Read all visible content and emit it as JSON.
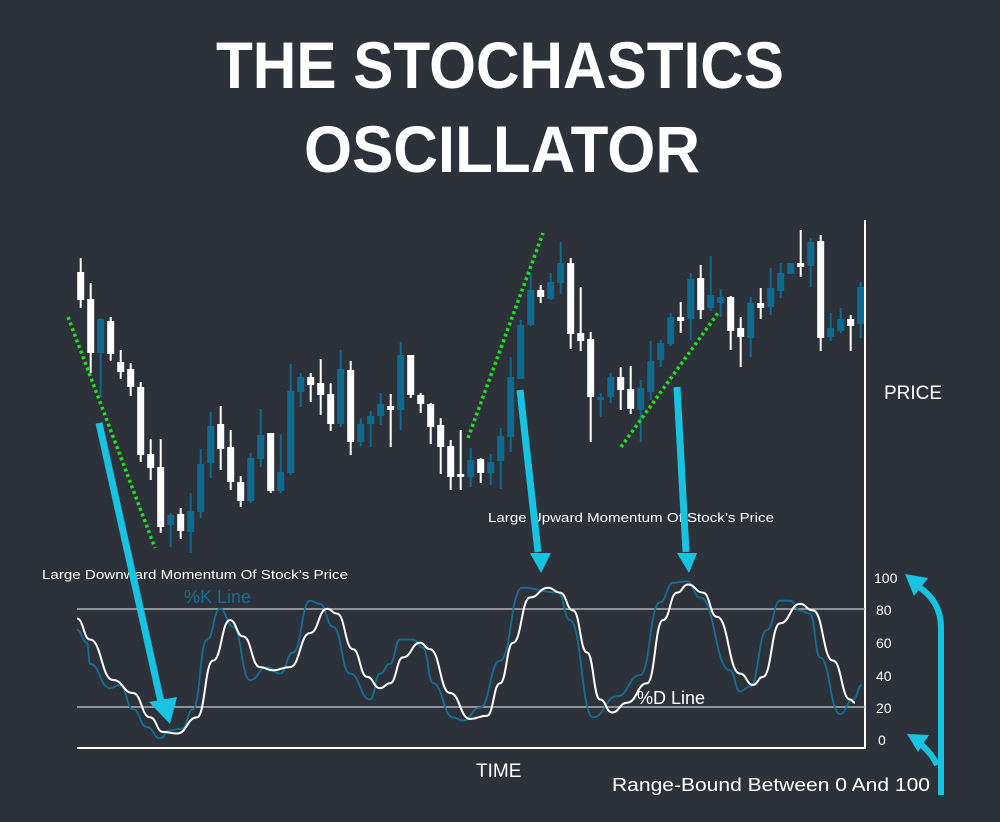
{
  "title_line1": "THE STOCHASTICS",
  "title_line2": "OSCILLATOR",
  "colors": {
    "background": "#2d323a",
    "up_candle": "#0e6a8e",
    "down_candle": "#ffffff",
    "k_line": "#136f93",
    "d_line": "#ffffff",
    "trendline": "#22dd22",
    "arrow": "#18c3e2",
    "gridline": "#aeb2b8"
  },
  "chart_data": [
    {
      "type": "candlestick",
      "ylabel": "PRICE",
      "note": "",
      "candle_fields": [
        "open",
        "high",
        "low",
        "close"
      ],
      "candles": [
        [
          328,
          342,
          292,
          300
        ],
        [
          301,
          317,
          227,
          247
        ],
        [
          247,
          282,
          203,
          281
        ],
        [
          279,
          283,
          239,
          246
        ],
        [
          238,
          250,
          221,
          228
        ],
        [
          231,
          237,
          204,
          213
        ],
        [
          213,
          218,
          138,
          145
        ],
        [
          146,
          161,
          120,
          132
        ],
        [
          133,
          161,
          67,
          73
        ],
        [
          75,
          87,
          53,
          85
        ],
        [
          86,
          92,
          61,
          69
        ],
        [
          68,
          107,
          47,
          89
        ],
        [
          88,
          151,
          82,
          136
        ],
        [
          137,
          188,
          122,
          174
        ],
        [
          176,
          194,
          130,
          151
        ],
        [
          153,
          170,
          110,
          118
        ],
        [
          118,
          124,
          93,
          99
        ],
        [
          99,
          147,
          97,
          142
        ],
        [
          141,
          191,
          133,
          165
        ],
        [
          167,
          167,
          107,
          109
        ],
        [
          109,
          166,
          107,
          128
        ],
        [
          127,
          236,
          125,
          209
        ],
        [
          208,
          227,
          193,
          223
        ],
        [
          223,
          227,
          198,
          215
        ],
        [
          217,
          241,
          185,
          205
        ],
        [
          206,
          217,
          169,
          176
        ],
        [
          176,
          250,
          173,
          231
        ],
        [
          230,
          239,
          145,
          158
        ],
        [
          158,
          182,
          154,
          176
        ],
        [
          176,
          189,
          153,
          184
        ],
        [
          184,
          207,
          175,
          196
        ],
        [
          194,
          206,
          153,
          190
        ],
        [
          190,
          258,
          170,
          245
        ],
        [
          245,
          245,
          202,
          205
        ],
        [
          205,
          207,
          187,
          196
        ],
        [
          196,
          197,
          156,
          173
        ],
        [
          175,
          182,
          126,
          153
        ],
        [
          154,
          160,
          110,
          123
        ],
        [
          126,
          170,
          110,
          123
        ],
        [
          123,
          152,
          113,
          140
        ],
        [
          141,
          142,
          117,
          127
        ],
        [
          127,
          146,
          115,
          138
        ],
        [
          139,
          172,
          111,
          164
        ],
        [
          163,
          243,
          148,
          223
        ],
        [
          221,
          280,
          221,
          275
        ],
        [
          275,
          327,
          274,
          310
        ],
        [
          310,
          315,
          297,
          303
        ],
        [
          301,
          327,
          300,
          318
        ],
        [
          317,
          358,
          306,
          337
        ],
        [
          337,
          342,
          251,
          266
        ],
        [
          267,
          313,
          249,
          259
        ],
        [
          261,
          268,
          158,
          203
        ],
        [
          200,
          207,
          183,
          203
        ],
        [
          203,
          227,
          197,
          223
        ],
        [
          223,
          233,
          190,
          210
        ],
        [
          211,
          234,
          186,
          191
        ],
        [
          190,
          220,
          158,
          212
        ],
        [
          208,
          259,
          200,
          239
        ],
        [
          240,
          260,
          233,
          257
        ],
        [
          256,
          287,
          254,
          283
        ],
        [
          283,
          298,
          267,
          279
        ],
        [
          281,
          327,
          260,
          321
        ],
        [
          322,
          335,
          281,
          290
        ],
        [
          292,
          344,
          289,
          305
        ],
        [
          297,
          311,
          283,
          303
        ],
        [
          303,
          304,
          250,
          269
        ],
        [
          272,
          283,
          233,
          263
        ],
        [
          262,
          303,
          243,
          297
        ],
        [
          297,
          312,
          281,
          292
        ],
        [
          293,
          332,
          285,
          312
        ],
        [
          309,
          337,
          302,
          327
        ],
        [
          326,
          337,
          326,
          337
        ],
        [
          337,
          370,
          323,
          333
        ],
        [
          334,
          362,
          313,
          358
        ],
        [
          359,
          365,
          249,
          262
        ],
        [
          263,
          287,
          259,
          272
        ],
        [
          269,
          292,
          267,
          281
        ],
        [
          281,
          285,
          249,
          274
        ],
        [
          276,
          318,
          262,
          313
        ]
      ],
      "trendlines": [
        {
          "direction": "down",
          "style": "dotted",
          "from_bar": -0.2,
          "to_bar": 8.5
        },
        {
          "direction": "up",
          "style": "dotted",
          "from_bar": 39.8,
          "to_bar": 47.3
        },
        {
          "direction": "up",
          "style": "dotted",
          "from_bar": 55.1,
          "to_bar": 64.8
        }
      ]
    },
    {
      "type": "line",
      "xlabel": "TIME",
      "ylim": [
        0,
        100
      ],
      "yticks": [
        "100",
        "80",
        "60",
        "40",
        "20",
        "0"
      ],
      "reference_lines": [
        80,
        20
      ],
      "series": [
        {
          "name": "%K Line",
          "x": [
            0.7,
            1.7,
            2,
            4,
            5,
            6.3,
            7.7,
            9,
            10,
            11.2,
            12.3,
            13.7,
            15,
            16.3,
            18,
            19.7,
            21,
            22.3,
            24,
            25,
            26.3,
            28,
            30,
            31,
            32,
            33,
            34.3,
            35.3,
            36.3,
            38.3,
            39.3,
            41,
            43,
            45.2,
            48.8,
            50,
            52.3,
            54.7,
            57,
            59,
            60.3,
            61.7,
            63,
            66,
            67,
            68,
            69.7,
            71,
            72,
            73,
            74,
            75,
            77,
            78.3,
            79.2
          ],
          "values": [
            68,
            60,
            47,
            32,
            34,
            19,
            8,
            1,
            6,
            7,
            19,
            62,
            81,
            70,
            37,
            45,
            41,
            54,
            86,
            84,
            70,
            41,
            25,
            41,
            47,
            62,
            62,
            57,
            35,
            14,
            12,
            20,
            49,
            94,
            91,
            74,
            14,
            27,
            40,
            85,
            97,
            98,
            88,
            43,
            30,
            33,
            68,
            86,
            86,
            80,
            78,
            51,
            16,
            25,
            34
          ]
        },
        {
          "name": "%D Line",
          "x": [
            0.7,
            2,
            4.3,
            6.3,
            8,
            9.3,
            10.7,
            12.7,
            14.3,
            16,
            17.3,
            19,
            20.3,
            22,
            24,
            25.7,
            26.7,
            28.3,
            29.7,
            31,
            32,
            33.3,
            35,
            36,
            38,
            40,
            41.7,
            43,
            44.3,
            46,
            47.8,
            49,
            50.3,
            51.7,
            53,
            54.2,
            55.7,
            57.7,
            59.3,
            60.7,
            61.8,
            63.3,
            64.7,
            67,
            68.3,
            69.3,
            71,
            73,
            74.3,
            76.3,
            78,
            78.5
          ],
          "values": [
            75,
            62,
            37,
            29,
            14,
            5,
            4,
            14,
            49,
            74,
            64,
            45,
            43,
            45,
            66,
            81,
            78,
            56,
            39,
            32,
            35,
            51,
            60,
            56,
            29,
            13,
            15,
            35,
            60,
            88,
            94,
            91,
            80,
            54,
            25,
            17,
            23,
            35,
            74,
            91,
            96,
            91,
            76,
            41,
            34,
            39,
            72,
            84,
            80,
            49,
            25,
            23
          ]
        }
      ]
    }
  ],
  "annotations": {
    "downward": "Large Downward Momentum Of  Stock’s Price",
    "upward": "Large Upward Momentum Of  Stock’s Price",
    "range": "Range-Bound Between 0 And 100"
  }
}
